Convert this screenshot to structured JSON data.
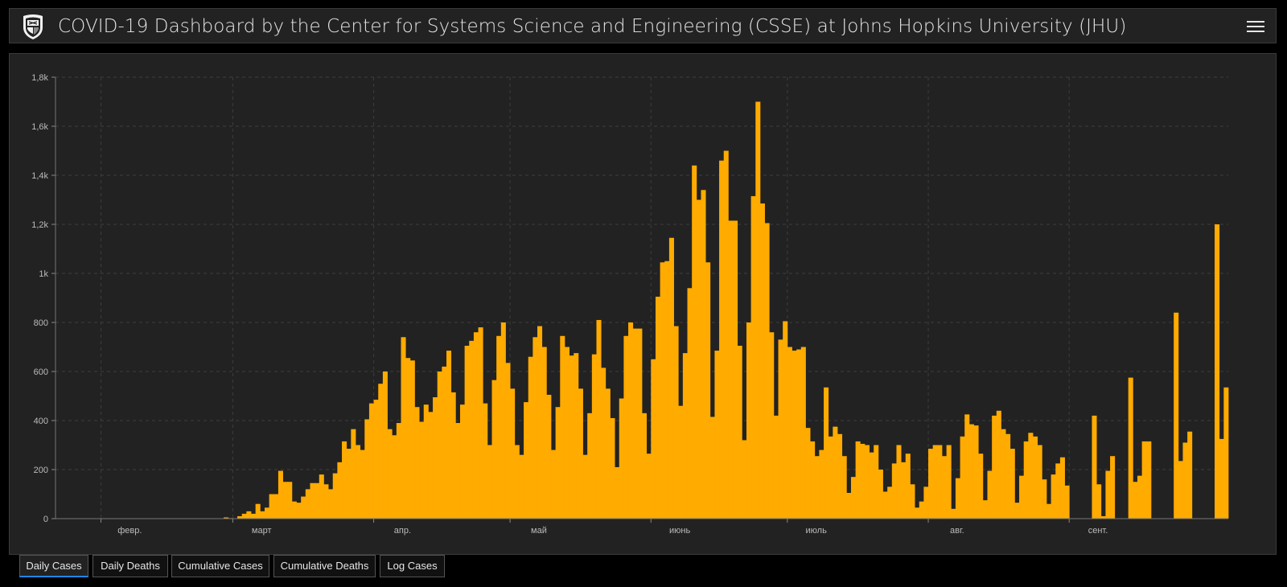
{
  "header": {
    "title": "COVID-19 Dashboard by the Center for Systems Science and Engineering (CSSE) at Johns Hopkins University (JHU)",
    "logo_icon": "jhu-shield-icon",
    "menu_icon": "hamburger-menu-icon"
  },
  "colors": {
    "bar": "#ffab00",
    "background": "#222222",
    "grid": "#3d3d3d",
    "active_tab": "#1e88e5"
  },
  "tabs": [
    {
      "label": "Daily Cases",
      "active": true
    },
    {
      "label": "Daily Deaths",
      "active": false
    },
    {
      "label": "Cumulative Cases",
      "active": false
    },
    {
      "label": "Cumulative Deaths",
      "active": false
    },
    {
      "label": "Log Cases",
      "active": false
    }
  ],
  "chart_data": {
    "type": "bar",
    "title": "",
    "xlabel": "",
    "ylabel": "",
    "ylim": [
      0,
      1800
    ],
    "yticks": [
      0,
      200,
      400,
      600,
      800,
      1000,
      1200,
      1400,
      1600,
      1800
    ],
    "ytick_labels": [
      "0",
      "200",
      "400",
      "600",
      "800",
      "1k",
      "1,2k",
      "1,4k",
      "1,6k",
      "1,8k"
    ],
    "x_start": "2020-01-22",
    "x_end": "2020-09-15",
    "xticks": [
      {
        "date": "2020-02-01",
        "label": "февр."
      },
      {
        "date": "2020-03-01",
        "label": "март"
      },
      {
        "date": "2020-04-01",
        "label": "апр."
      },
      {
        "date": "2020-05-01",
        "label": "май"
      },
      {
        "date": "2020-06-01",
        "label": "июнь"
      },
      {
        "date": "2020-07-01",
        "label": "июль"
      },
      {
        "date": "2020-08-01",
        "label": "авг."
      },
      {
        "date": "2020-09-01",
        "label": "сент."
      }
    ],
    "grid": true,
    "values": [
      0,
      0,
      0,
      0,
      0,
      0,
      0,
      0,
      0,
      0,
      0,
      0,
      0,
      0,
      0,
      0,
      0,
      0,
      0,
      0,
      0,
      0,
      0,
      0,
      0,
      0,
      0,
      0,
      0,
      0,
      0,
      0,
      0,
      0,
      0,
      0,
      0,
      5,
      2,
      0,
      10,
      20,
      30,
      20,
      60,
      30,
      45,
      100,
      100,
      195,
      150,
      150,
      70,
      65,
      90,
      120,
      145,
      145,
      180,
      140,
      120,
      185,
      230,
      315,
      285,
      365,
      300,
      280,
      405,
      470,
      485,
      550,
      600,
      365,
      340,
      390,
      740,
      655,
      645,
      455,
      395,
      465,
      435,
      495,
      600,
      620,
      685,
      515,
      390,
      465,
      705,
      725,
      760,
      780,
      470,
      300,
      565,
      745,
      800,
      635,
      530,
      300,
      260,
      475,
      660,
      740,
      785,
      700,
      505,
      280,
      455,
      745,
      700,
      665,
      675,
      530,
      260,
      430,
      670,
      810,
      615,
      530,
      410,
      210,
      490,
      745,
      800,
      775,
      775,
      430,
      265,
      650,
      905,
      1045,
      1050,
      1145,
      785,
      460,
      675,
      940,
      1440,
      1300,
      1340,
      1045,
      415,
      685,
      1460,
      1500,
      1215,
      1215,
      705,
      320,
      800,
      1315,
      1700,
      1285,
      1205,
      760,
      420,
      730,
      805,
      700,
      685,
      690,
      700,
      370,
      315,
      255,
      280,
      535,
      335,
      375,
      345,
      255,
      105,
      170,
      315,
      305,
      300,
      270,
      300,
      200,
      110,
      130,
      225,
      300,
      230,
      265,
      140,
      45,
      70,
      130,
      285,
      300,
      300,
      255,
      300,
      40,
      165,
      335,
      425,
      385,
      380,
      265,
      75,
      195,
      420,
      440,
      365,
      345,
      285,
      65,
      175,
      315,
      350,
      335,
      300,
      160,
      60,
      180,
      225,
      250,
      135,
      0,
      0,
      0,
      0,
      0,
      420,
      140,
      10,
      195,
      255,
      0,
      0,
      0,
      575,
      150,
      175,
      315,
      315,
      0,
      0,
      0,
      0,
      0,
      840,
      235,
      310,
      355,
      0,
      0,
      0,
      0,
      0,
      1200,
      325,
      535
    ]
  }
}
